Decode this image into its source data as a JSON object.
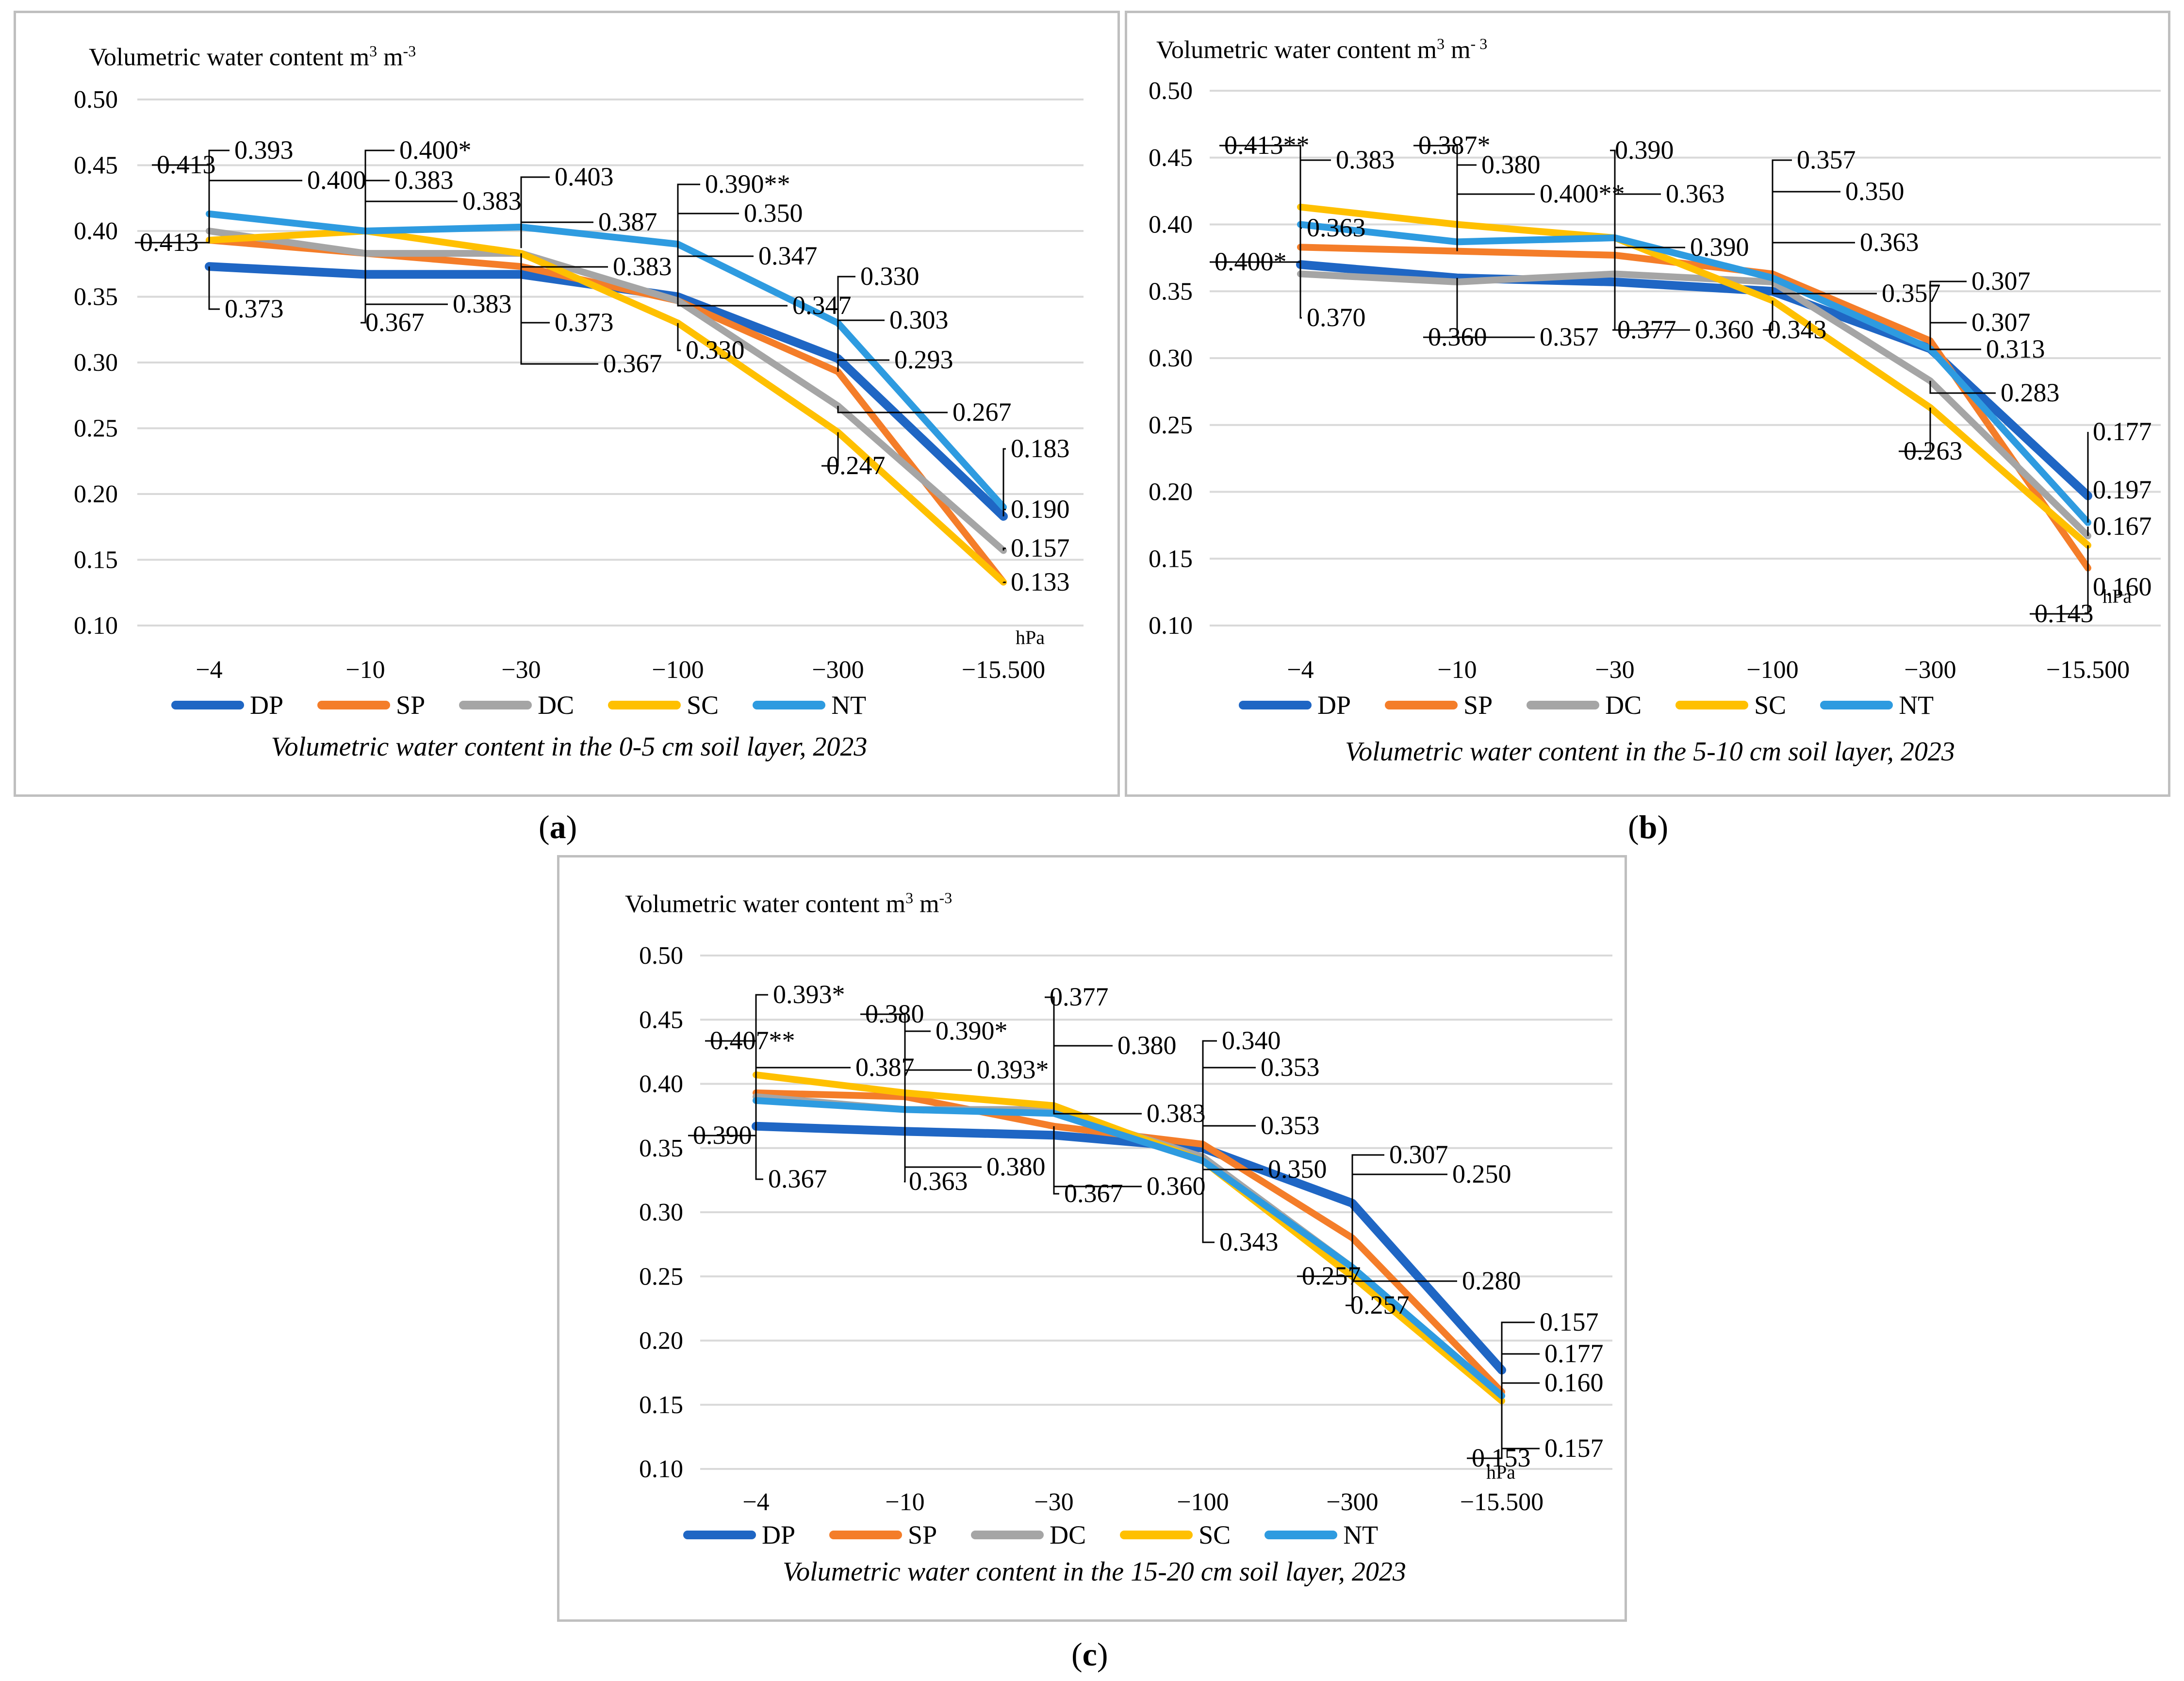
{
  "colors": {
    "DP": "#1f66c4",
    "SP": "#f47d29",
    "DC": "#a5a5a5",
    "SC": "#ffc000",
    "NT": "#2e9be0",
    "grid": "#d9d9d9",
    "leader": "#000000"
  },
  "panel_labels": {
    "a": "a",
    "b": "b",
    "c": "c"
  },
  "chart_data": [
    {
      "type": "line",
      "title_main": "Volumetric water content m",
      "title_sup1": "3",
      "title_mid": " m",
      "title_sup2": "-3",
      "caption": "Volumetric water content in the 0-5 cm soil layer, 2023",
      "unit_label": "hPa",
      "categories": [
        "−4",
        "−10",
        "−30",
        "−100",
        "−300",
        "−15.500"
      ],
      "yticks": [
        "0.10",
        "0.15",
        "0.20",
        "0.25",
        "0.30",
        "0.35",
        "0.40",
        "0.45",
        "0.50"
      ],
      "ylim": [
        0.1,
        0.5
      ],
      "series": [
        {
          "name": "DP",
          "values": [
            0.373,
            0.367,
            0.367,
            0.35,
            0.303,
            0.183
          ]
        },
        {
          "name": "SP",
          "values": [
            0.393,
            0.383,
            0.373,
            0.347,
            0.293,
            0.133
          ]
        },
        {
          "name": "DC",
          "values": [
            0.4,
            0.383,
            0.383,
            0.347,
            0.267,
            0.157
          ]
        },
        {
          "name": "SC",
          "values": [
            0.393,
            0.4,
            0.383,
            0.33,
            0.247,
            0.133
          ]
        },
        {
          "name": "NT",
          "values": [
            0.413,
            0.4,
            0.403,
            0.39,
            0.33,
            0.19
          ]
        }
      ],
      "annotations": [
        "0.413",
        "0.393",
        "0.400",
        "0.400*",
        "0.383",
        "0.383",
        "0.403",
        "0.387",
        "0.390**",
        "0.350",
        "0.347",
        "0.330",
        "0.413",
        "0.383",
        "0.347",
        "0.303",
        "0.373",
        "0.367",
        "0.383",
        "0.373",
        "0.367",
        "0.330",
        "0.293",
        "0.267",
        "0.247",
        "0.183",
        "0.190",
        "0.157",
        "0.133"
      ]
    },
    {
      "type": "line",
      "title_main": "Volumetric water content m",
      "title_sup1": "3",
      "title_mid": " m",
      "title_sup2": "- 3",
      "caption": "Volumetric water content in the 5-10 cm soil layer, 2023",
      "unit_label": "hPa",
      "categories": [
        "−4",
        "−10",
        "−30",
        "−100",
        "−300",
        "−15.500"
      ],
      "yticks": [
        "0.10",
        "0.15",
        "0.20",
        "0.25",
        "0.30",
        "0.35",
        "0.40",
        "0.45",
        "0.50"
      ],
      "ylim": [
        0.1,
        0.5
      ],
      "series": [
        {
          "name": "DP",
          "values": [
            0.37,
            0.36,
            0.357,
            0.35,
            0.307,
            0.197
          ]
        },
        {
          "name": "SP",
          "values": [
            0.383,
            0.38,
            0.377,
            0.363,
            0.313,
            0.143
          ]
        },
        {
          "name": "DC",
          "values": [
            0.363,
            0.357,
            0.363,
            0.357,
            0.283,
            0.167
          ]
        },
        {
          "name": "SC",
          "values": [
            0.413,
            0.4,
            0.39,
            0.343,
            0.263,
            0.16
          ]
        },
        {
          "name": "NT",
          "values": [
            0.4,
            0.387,
            0.39,
            0.36,
            0.307,
            0.177
          ]
        }
      ],
      "annotations": [
        "0.413**",
        "0.383",
        "0.387*",
        "0.380",
        "0.390",
        "0.400**",
        "0.363",
        "0.357",
        "0.350",
        "0.363",
        "0.390",
        "0.363",
        "0.400*",
        "0.370",
        "0.360",
        "0.357",
        "0.377",
        "0.360",
        "0.343",
        "0.357",
        "0.307",
        "0.307",
        "0.313",
        "0.283",
        "0.263",
        "0.177",
        "0.197",
        "0.167",
        "0.160",
        "0.143"
      ]
    },
    {
      "type": "line",
      "title_main": "Volumetric water content m",
      "title_sup1": "3",
      "title_mid": " m",
      "title_sup2": "-3",
      "caption": "Volumetric water content in the 15-20 cm soil layer, 2023",
      "unit_label": "hPa",
      "categories": [
        "−4",
        "−10",
        "−30",
        "−100",
        "−300",
        "−15.500"
      ],
      "yticks": [
        "0.10",
        "0.15",
        "0.20",
        "0.25",
        "0.30",
        "0.35",
        "0.40",
        "0.45",
        "0.50"
      ],
      "ylim": [
        0.1,
        0.5
      ],
      "series": [
        {
          "name": "DP",
          "values": [
            0.367,
            0.363,
            0.36,
            0.35,
            0.307,
            0.177
          ]
        },
        {
          "name": "SP",
          "values": [
            0.393,
            0.39,
            0.367,
            0.353,
            0.28,
            0.16
          ]
        },
        {
          "name": "DC",
          "values": [
            0.39,
            0.38,
            0.38,
            0.343,
            0.257,
            0.157
          ]
        },
        {
          "name": "SC",
          "values": [
            0.407,
            0.393,
            0.383,
            0.34,
            0.25,
            0.153
          ]
        },
        {
          "name": "NT",
          "values": [
            0.387,
            0.38,
            0.377,
            0.34,
            0.257,
            0.157
          ]
        }
      ],
      "annotations": [
        "0.393*",
        "0.407**",
        "0.380",
        "0.390*",
        "0.387",
        "0.393*",
        "0.377",
        "0.380",
        "0.340",
        "0.353",
        "0.383",
        "0.353",
        "0.390",
        "0.367",
        "0.363",
        "0.380",
        "0.367",
        "0.360",
        "0.350",
        "0.307",
        "0.250",
        "0.343",
        "0.257",
        "0.257",
        "0.280",
        "0.157",
        "0.177",
        "0.160",
        "0.157",
        "0.153"
      ]
    }
  ]
}
